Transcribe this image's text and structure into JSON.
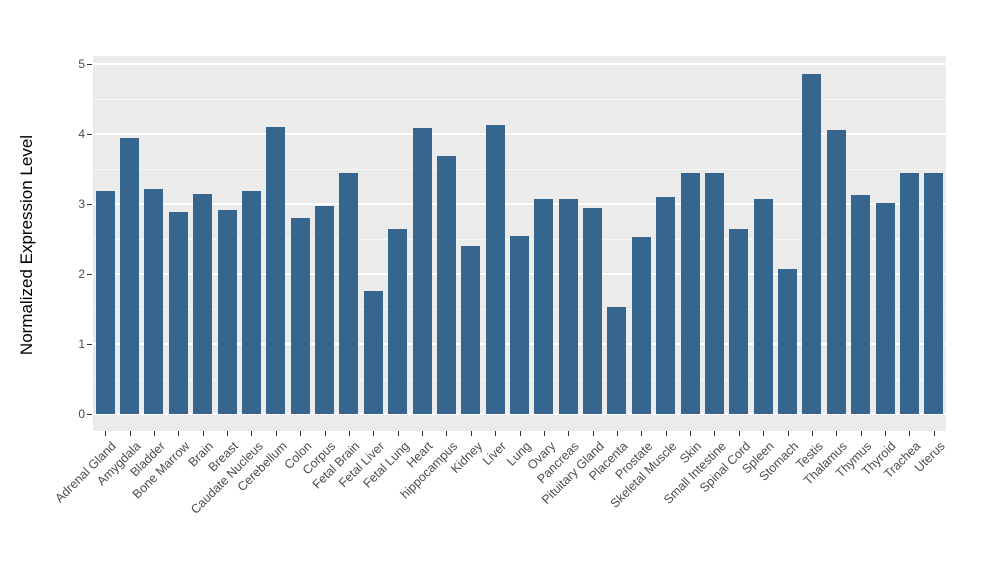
{
  "figure": {
    "ylabel": "Normalized Expression Level",
    "colors": {
      "bar": "#36658D",
      "panel_background": "#EBEBEB",
      "grid_major": "#FFFFFF",
      "grid_minor": "#F7F7F7",
      "tick_text": "#4D4D4D",
      "axis_title": "#000000",
      "page_background": "#FFFFFF"
    }
  },
  "chart_data": {
    "type": "bar",
    "title": "",
    "xlabel": "",
    "ylabel": "Normalized Expression Level",
    "categories": [
      "Adrenal Gland",
      "Amygdala",
      "Bladder",
      "Bone Marrow",
      "Brain",
      "Breast",
      "Caudate Nucleus",
      "Cerebellum",
      "Colon",
      "Corpus",
      "Fetal Brain",
      "Fetal Liver",
      "Fetal Lung",
      "Heart",
      "hippocampus",
      "Kidney",
      "Liver",
      "Lung",
      "Ovary",
      "Pancreas",
      "Pituitary Gland",
      "Placenta",
      "Prostate",
      "Skeletal Muscle",
      "Skin",
      "Small Intestine",
      "Spinal Cord",
      "Spleen",
      "Stomach",
      "Testis",
      "Thalamus",
      "Thymus",
      "Thyroid",
      "Trachea",
      "Uterus"
    ],
    "values": [
      3.19,
      3.95,
      3.21,
      2.88,
      3.15,
      2.91,
      3.19,
      4.1,
      2.8,
      2.97,
      3.44,
      1.76,
      2.65,
      4.09,
      3.68,
      2.4,
      4.13,
      2.55,
      3.07,
      3.07,
      2.95,
      1.53,
      2.53,
      3.1,
      3.44,
      3.45,
      2.65,
      3.07,
      2.07,
      4.86,
      4.06,
      3.13,
      3.01,
      3.45,
      3.45
    ],
    "ylim": [
      0,
      5
    ],
    "yticks": [
      0,
      1,
      2,
      3,
      4,
      5
    ],
    "grid": "white major gridlines at integers, white minor gridlines at 0.5 steps, on gray panel",
    "legend": "none",
    "bar_color": "#36658D",
    "x_label_rotation_deg": -45
  }
}
